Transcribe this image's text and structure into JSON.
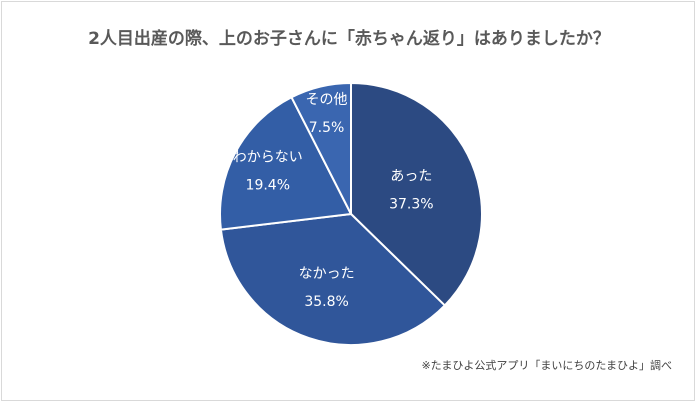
{
  "chart_data": {
    "type": "pie",
    "title": "2人目出産の際、上のお子さんに「赤ちゃん返り」はありましたか？",
    "start": "top",
    "direction": "clockwise",
    "slices": [
      {
        "label": "あった",
        "value": 37.3,
        "value_label": "37.3%",
        "color": "#2c4a82"
      },
      {
        "label": "なかった",
        "value": 35.8,
        "value_label": "35.8%",
        "color": "#30569a"
      },
      {
        "label": "わからない",
        "value": 19.4,
        "value_label": "19.4%",
        "color": "#335ea6"
      },
      {
        "label": "その他",
        "value": 7.5,
        "value_label": "7.5%",
        "color": "#3a66b0"
      }
    ],
    "source_note": "※たまひよ公式アプリ「まいにちのたまひよ」調べ"
  }
}
